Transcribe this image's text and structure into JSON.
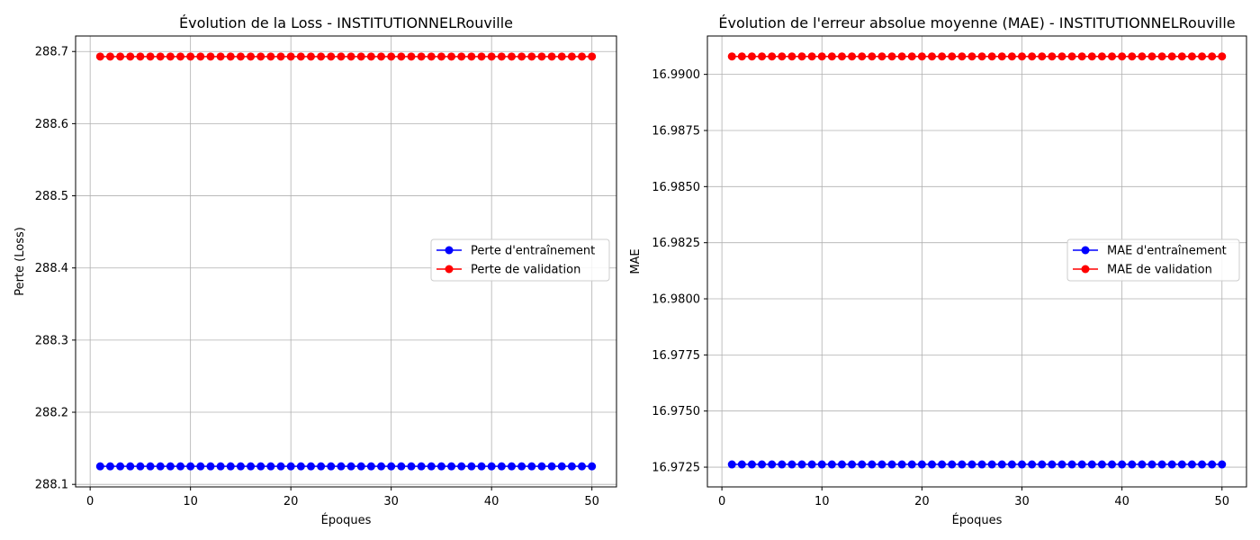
{
  "chart_data": [
    {
      "type": "line",
      "title": "Évolution de la Loss - INSTITUTIONNELRouville",
      "xlabel": "Époques",
      "ylabel": "Perte (Loss)",
      "xlim": [
        -1.45,
        52.45
      ],
      "ylim": [
        288.0965,
        288.7215
      ],
      "xticks": [
        0,
        10,
        20,
        30,
        40,
        50
      ],
      "yticks": [
        288.1,
        288.2,
        288.3,
        288.4,
        288.5,
        288.6,
        288.7
      ],
      "ytick_labels": [
        "288.1",
        "288.2",
        "288.3",
        "288.4",
        "288.5",
        "288.6",
        "288.7"
      ],
      "grid": true,
      "legend_position": "center-right",
      "x": [
        1,
        2,
        3,
        4,
        5,
        6,
        7,
        8,
        9,
        10,
        11,
        12,
        13,
        14,
        15,
        16,
        17,
        18,
        19,
        20,
        21,
        22,
        23,
        24,
        25,
        26,
        27,
        28,
        29,
        30,
        31,
        32,
        33,
        34,
        35,
        36,
        37,
        38,
        39,
        40,
        41,
        42,
        43,
        44,
        45,
        46,
        47,
        48,
        49,
        50
      ],
      "series": [
        {
          "name": "Perte d'entraînement",
          "color": "#0000ff",
          "constant": 288.125
        },
        {
          "name": "Perte de validation",
          "color": "#ff0000",
          "constant": 288.693
        }
      ]
    },
    {
      "type": "line",
      "title": "Évolution de l'erreur absolue moyenne (MAE) - INSTITUTIONNELRouville",
      "xlabel": "Époques",
      "ylabel": "MAE",
      "xlim": [
        -1.45,
        52.45
      ],
      "ylim": [
        16.97162,
        16.99171
      ],
      "xticks": [
        0,
        10,
        20,
        30,
        40,
        50
      ],
      "yticks": [
        16.9725,
        16.975,
        16.9775,
        16.98,
        16.9825,
        16.985,
        16.9875,
        16.99
      ],
      "ytick_labels": [
        "16.9725",
        "16.9750",
        "16.9775",
        "16.9800",
        "16.9825",
        "16.9850",
        "16.9875",
        "16.9900"
      ],
      "grid": true,
      "legend_position": "center-right",
      "x": [
        1,
        2,
        3,
        4,
        5,
        6,
        7,
        8,
        9,
        10,
        11,
        12,
        13,
        14,
        15,
        16,
        17,
        18,
        19,
        20,
        21,
        22,
        23,
        24,
        25,
        26,
        27,
        28,
        29,
        30,
        31,
        32,
        33,
        34,
        35,
        36,
        37,
        38,
        39,
        40,
        41,
        42,
        43,
        44,
        45,
        46,
        47,
        48,
        49,
        50
      ],
      "series": [
        {
          "name": "MAE d'entraînement",
          "color": "#0000ff",
          "constant": 16.97262
        },
        {
          "name": "MAE de validation",
          "color": "#ff0000",
          "constant": 16.9908
        }
      ]
    }
  ]
}
